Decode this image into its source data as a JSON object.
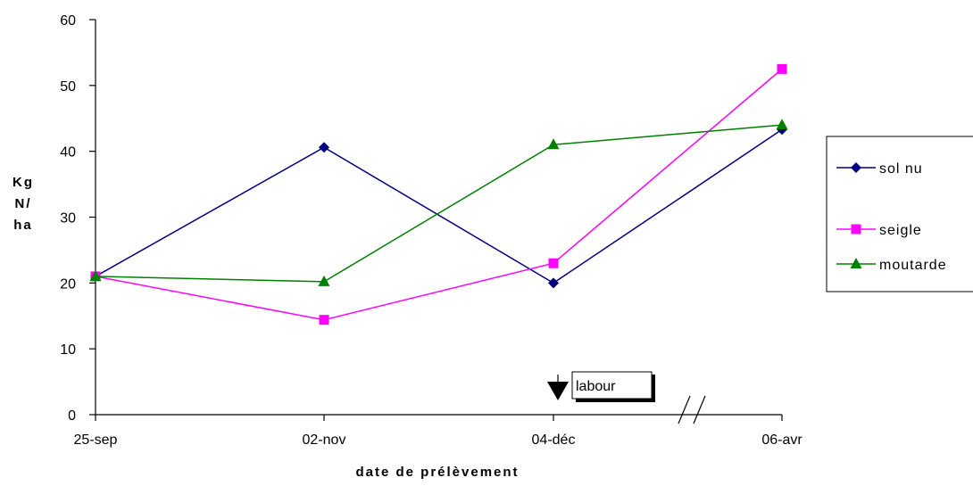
{
  "chart_data": {
    "type": "line",
    "title": "",
    "xlabel": "date de prélèvement",
    "ylabel": [
      "Kg",
      "N/",
      "ha"
    ],
    "categories": [
      "25-sep",
      "02-nov",
      "04-déc",
      "06-avr"
    ],
    "ylim": [
      0,
      60
    ],
    "yticks": [
      0,
      10,
      20,
      30,
      40,
      50,
      60
    ],
    "grid": false,
    "legend_position": "right",
    "axis_break": "between 04-déc and 06-avr",
    "annotation": {
      "text": "labour",
      "at": "04-déc",
      "marker": "down-arrow"
    },
    "series": [
      {
        "name": "sol nu",
        "color": "#000080",
        "marker": "diamond",
        "values": [
          21,
          40.6,
          20,
          43.3
        ]
      },
      {
        "name": "seigle",
        "color": "#ff00ff",
        "marker": "square",
        "values": [
          21,
          14.4,
          23,
          52.5
        ]
      },
      {
        "name": "moutarde",
        "color": "#008000",
        "marker": "triangle",
        "values": [
          21,
          20.2,
          41,
          44
        ]
      }
    ]
  }
}
